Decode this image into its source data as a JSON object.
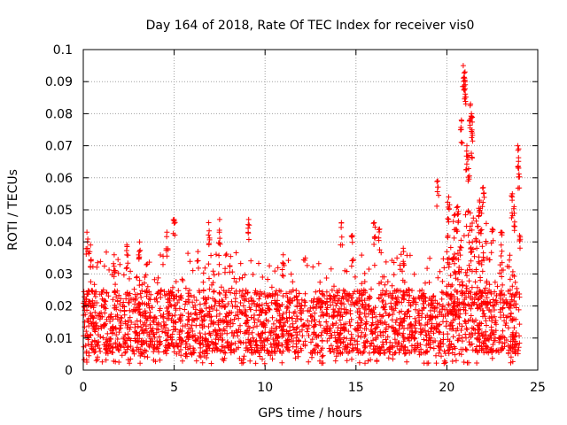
{
  "chart_data": {
    "type": "scatter",
    "title": "Day 164 of 2018, Rate Of TEC Index for receiver vis0",
    "xlabel": "GPS time / hours",
    "ylabel": "ROTI / TECUs",
    "xlim": [
      0,
      25
    ],
    "ylim": [
      0,
      0.1
    ],
    "grid": true,
    "marker": "+",
    "marker_color": "#ff0000",
    "x_ticks": [
      0,
      5,
      10,
      15,
      20,
      25
    ],
    "x_tick_labels": [
      "0",
      "5",
      "10",
      "15",
      "20",
      "25"
    ],
    "y_ticks": [
      0,
      0.01,
      0.02,
      0.03,
      0.04,
      0.05,
      0.06,
      0.07,
      0.08,
      0.09,
      0.1
    ],
    "y_tick_labels": [
      "0",
      "0.01",
      "0.02",
      "0.03",
      "0.04",
      "0.05",
      "0.06",
      "0.07",
      "0.08",
      "0.09",
      "0.1"
    ],
    "series": [
      {
        "name": "ROTI",
        "color": "#ff0000",
        "data_range_hours": [
          0,
          24
        ],
        "typical_band": [
          0.005,
          0.025
        ],
        "peaks": [
          {
            "x": 0.2,
            "y": 0.043
          },
          {
            "x": 0.4,
            "y": 0.039
          },
          {
            "x": 1.7,
            "y": 0.036
          },
          {
            "x": 2.4,
            "y": 0.039
          },
          {
            "x": 3.1,
            "y": 0.04
          },
          {
            "x": 4.6,
            "y": 0.043
          },
          {
            "x": 5.0,
            "y": 0.047
          },
          {
            "x": 6.9,
            "y": 0.046
          },
          {
            "x": 7.5,
            "y": 0.047
          },
          {
            "x": 9.1,
            "y": 0.047
          },
          {
            "x": 11.0,
            "y": 0.036
          },
          {
            "x": 14.2,
            "y": 0.046
          },
          {
            "x": 14.8,
            "y": 0.042
          },
          {
            "x": 16.0,
            "y": 0.046
          },
          {
            "x": 16.3,
            "y": 0.044
          },
          {
            "x": 17.6,
            "y": 0.038
          },
          {
            "x": 19.5,
            "y": 0.059
          },
          {
            "x": 20.1,
            "y": 0.054
          },
          {
            "x": 20.6,
            "y": 0.051
          },
          {
            "x": 20.8,
            "y": 0.078
          },
          {
            "x": 20.9,
            "y": 0.095
          },
          {
            "x": 21.0,
            "y": 0.093
          },
          {
            "x": 21.0,
            "y": 0.09
          },
          {
            "x": 21.1,
            "y": 0.07
          },
          {
            "x": 21.2,
            "y": 0.067
          },
          {
            "x": 21.3,
            "y": 0.083
          },
          {
            "x": 21.35,
            "y": 0.08
          },
          {
            "x": 21.4,
            "y": 0.074
          },
          {
            "x": 21.8,
            "y": 0.053
          },
          {
            "x": 22.0,
            "y": 0.057
          },
          {
            "x": 22.5,
            "y": 0.044
          },
          {
            "x": 23.0,
            "y": 0.043
          },
          {
            "x": 23.6,
            "y": 0.055
          },
          {
            "x": 23.7,
            "y": 0.051
          },
          {
            "x": 23.9,
            "y": 0.07
          },
          {
            "x": 23.95,
            "y": 0.063
          },
          {
            "x": 24.0,
            "y": 0.042
          }
        ]
      }
    ]
  }
}
